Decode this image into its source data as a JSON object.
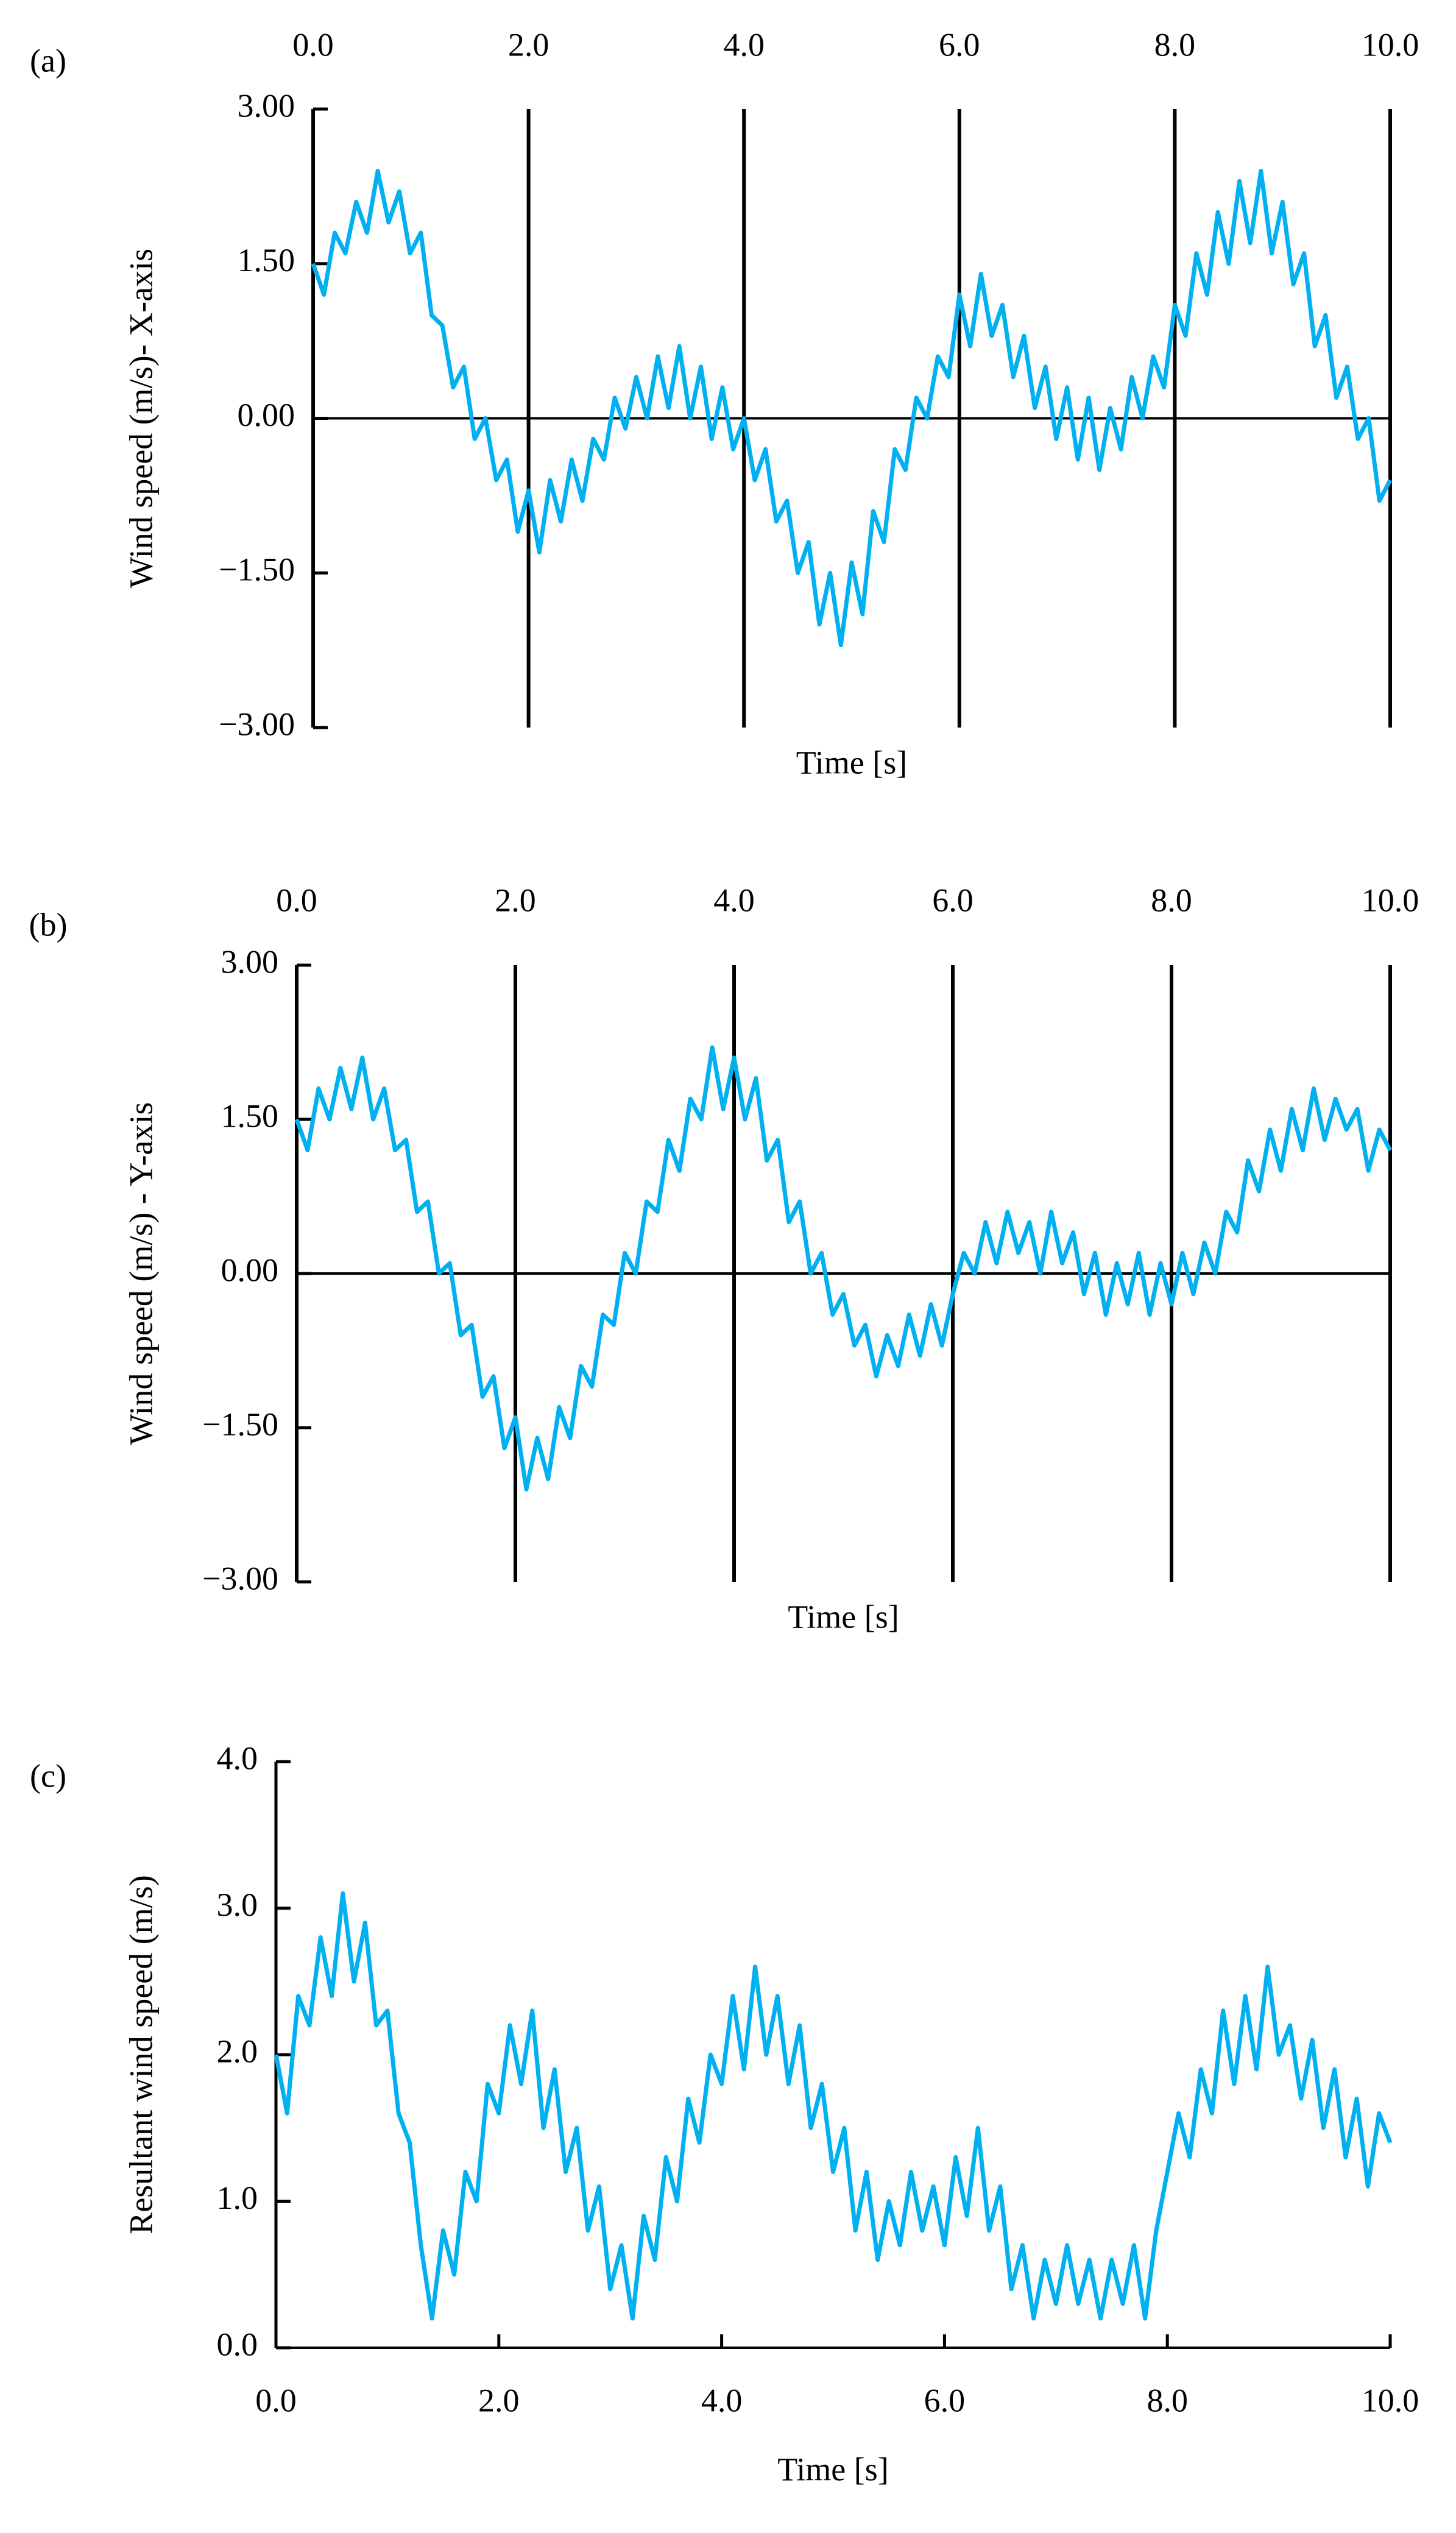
{
  "chart_data": [
    {
      "type": "line",
      "panel_label": "(a)",
      "xlabel": "Time [s]",
      "ylabel": "Wind speed (m/s)- X-axis",
      "xaxis_position": "top",
      "grid": true,
      "xlim": [
        0,
        10
      ],
      "xticks": [
        {
          "value": 0,
          "label": "0.0"
        },
        {
          "value": 2,
          "label": "2.0"
        },
        {
          "value": 4,
          "label": "4.0"
        },
        {
          "value": 6,
          "label": "6.0"
        },
        {
          "value": 8,
          "label": "8.0"
        },
        {
          "value": 10,
          "label": "10.0"
        }
      ],
      "ylim": [
        -3,
        3
      ],
      "yticks": [
        {
          "value": -3,
          "label": "−3.00"
        },
        {
          "value": -1.5,
          "label": "−1.50"
        },
        {
          "value": 0,
          "label": "0.00"
        },
        {
          "value": 1.5,
          "label": "1.50"
        },
        {
          "value": 3,
          "label": "3.00"
        }
      ],
      "x": [
        0,
        0.1,
        0.2,
        0.3,
        0.4,
        0.5,
        0.6,
        0.7,
        0.8,
        0.9,
        1,
        1.1,
        1.2,
        1.3,
        1.4,
        1.5,
        1.6,
        1.7,
        1.8,
        1.9,
        2,
        2.1,
        2.2,
        2.3,
        2.4,
        2.5,
        2.6,
        2.7,
        2.8,
        2.9,
        3,
        3.1,
        3.2,
        3.3,
        3.4,
        3.5,
        3.6,
        3.7,
        3.8,
        3.9,
        4,
        4.1,
        4.2,
        4.3,
        4.4,
        4.5,
        4.6,
        4.7,
        4.8,
        4.9,
        5,
        5.1,
        5.2,
        5.3,
        5.4,
        5.5,
        5.6,
        5.7,
        5.8,
        5.9,
        6,
        6.1,
        6.2,
        6.3,
        6.4,
        6.5,
        6.6,
        6.7,
        6.8,
        6.9,
        7,
        7.1,
        7.2,
        7.3,
        7.4,
        7.5,
        7.6,
        7.7,
        7.8,
        7.9,
        8,
        8.1,
        8.2,
        8.3,
        8.4,
        8.5,
        8.6,
        8.7,
        8.8,
        8.9,
        9,
        9.1,
        9.2,
        9.3,
        9.4,
        9.5,
        9.6,
        9.7,
        9.8,
        9.9,
        10
      ],
      "series": [
        {
          "color": "#00b0f0",
          "values": [
            1.5,
            1.2,
            1.8,
            1.6,
            2.1,
            1.8,
            2.4,
            1.9,
            2.2,
            1.6,
            1.8,
            1.0,
            0.9,
            0.3,
            0.5,
            -0.2,
            0.0,
            -0.6,
            -0.4,
            -1.1,
            -0.7,
            -1.3,
            -0.6,
            -1.0,
            -0.4,
            -0.8,
            -0.2,
            -0.4,
            0.2,
            -0.1,
            0.4,
            0.0,
            0.6,
            0.1,
            0.7,
            0.0,
            0.5,
            -0.2,
            0.3,
            -0.3,
            0.0,
            -0.6,
            -0.3,
            -1.0,
            -0.8,
            -1.5,
            -1.2,
            -2.0,
            -1.5,
            -2.2,
            -1.4,
            -1.9,
            -0.9,
            -1.2,
            -0.3,
            -0.5,
            0.2,
            0.0,
            0.6,
            0.4,
            1.2,
            0.7,
            1.4,
            0.8,
            1.1,
            0.4,
            0.8,
            0.1,
            0.5,
            -0.2,
            0.3,
            -0.4,
            0.2,
            -0.5,
            0.1,
            -0.3,
            0.4,
            0.0,
            0.6,
            0.3,
            1.1,
            0.8,
            1.6,
            1.2,
            2.0,
            1.5,
            2.3,
            1.7,
            2.4,
            1.6,
            2.1,
            1.3,
            1.6,
            0.7,
            1.0,
            0.2,
            0.5,
            -0.2,
            0.0,
            -0.8,
            -0.6
          ]
        }
      ]
    },
    {
      "type": "line",
      "panel_label": "(b)",
      "xlabel": "Time [s]",
      "ylabel": "Wind speed (m/s) - Y-axis",
      "xaxis_position": "top",
      "grid": true,
      "xlim": [
        0,
        10
      ],
      "xticks": [
        {
          "value": 0,
          "label": "0.0"
        },
        {
          "value": 2,
          "label": "2.0"
        },
        {
          "value": 4,
          "label": "4.0"
        },
        {
          "value": 6,
          "label": "6.0"
        },
        {
          "value": 8,
          "label": "8.0"
        },
        {
          "value": 10,
          "label": "10.0"
        }
      ],
      "ylim": [
        -3,
        3
      ],
      "yticks": [
        {
          "value": -3,
          "label": "−3.00"
        },
        {
          "value": -1.5,
          "label": "−1.50"
        },
        {
          "value": 0,
          "label": "0.00"
        },
        {
          "value": 1.5,
          "label": "1.50"
        },
        {
          "value": 3,
          "label": "3.00"
        }
      ],
      "x": [
        0,
        0.1,
        0.2,
        0.3,
        0.4,
        0.5,
        0.6,
        0.7,
        0.8,
        0.9,
        1,
        1.1,
        1.2,
        1.3,
        1.4,
        1.5,
        1.6,
        1.7,
        1.8,
        1.9,
        2,
        2.1,
        2.2,
        2.3,
        2.4,
        2.5,
        2.6,
        2.7,
        2.8,
        2.9,
        3,
        3.1,
        3.2,
        3.3,
        3.4,
        3.5,
        3.6,
        3.7,
        3.8,
        3.9,
        4,
        4.1,
        4.2,
        4.3,
        4.4,
        4.5,
        4.6,
        4.7,
        4.8,
        4.9,
        5,
        5.1,
        5.2,
        5.3,
        5.4,
        5.5,
        5.6,
        5.7,
        5.8,
        5.9,
        6,
        6.1,
        6.2,
        6.3,
        6.4,
        6.5,
        6.6,
        6.7,
        6.8,
        6.9,
        7,
        7.1,
        7.2,
        7.3,
        7.4,
        7.5,
        7.6,
        7.7,
        7.8,
        7.9,
        8,
        8.1,
        8.2,
        8.3,
        8.4,
        8.5,
        8.6,
        8.7,
        8.8,
        8.9,
        9,
        9.1,
        9.2,
        9.3,
        9.4,
        9.5,
        9.6,
        9.7,
        9.8,
        9.9,
        10
      ],
      "series": [
        {
          "color": "#00b0f0",
          "values": [
            1.5,
            1.2,
            1.8,
            1.5,
            2.0,
            1.6,
            2.1,
            1.5,
            1.8,
            1.2,
            1.3,
            0.6,
            0.7,
            0.0,
            0.1,
            -0.6,
            -0.5,
            -1.2,
            -1.0,
            -1.7,
            -1.4,
            -2.1,
            -1.6,
            -2.0,
            -1.3,
            -1.6,
            -0.9,
            -1.1,
            -0.4,
            -0.5,
            0.2,
            0.0,
            0.7,
            0.6,
            1.3,
            1.0,
            1.7,
            1.5,
            2.2,
            1.6,
            2.1,
            1.5,
            1.9,
            1.1,
            1.3,
            0.5,
            0.7,
            0.0,
            0.2,
            -0.4,
            -0.2,
            -0.7,
            -0.5,
            -1.0,
            -0.6,
            -0.9,
            -0.4,
            -0.8,
            -0.3,
            -0.7,
            -0.2,
            0.2,
            0.0,
            0.5,
            0.1,
            0.6,
            0.2,
            0.5,
            0.0,
            0.6,
            0.1,
            0.4,
            -0.2,
            0.2,
            -0.4,
            0.1,
            -0.3,
            0.2,
            -0.4,
            0.1,
            -0.3,
            0.2,
            -0.2,
            0.3,
            0.0,
            0.6,
            0.4,
            1.1,
            0.8,
            1.4,
            1.0,
            1.6,
            1.2,
            1.8,
            1.3,
            1.7,
            1.4,
            1.6,
            1.0,
            1.4,
            1.2
          ]
        }
      ]
    },
    {
      "type": "line",
      "panel_label": "(c)",
      "xlabel": "Time [s]",
      "ylabel": "Resultant wind speed (m/s)",
      "xaxis_position": "bottom",
      "grid": false,
      "xlim": [
        0,
        10
      ],
      "xticks": [
        {
          "value": 0,
          "label": "0.0"
        },
        {
          "value": 2,
          "label": "2.0"
        },
        {
          "value": 4,
          "label": "4.0"
        },
        {
          "value": 6,
          "label": "6.0"
        },
        {
          "value": 8,
          "label": "8.0"
        },
        {
          "value": 10,
          "label": "10.0"
        }
      ],
      "ylim": [
        0,
        4
      ],
      "yticks": [
        {
          "value": 0,
          "label": "0.0"
        },
        {
          "value": 1,
          "label": "1.0"
        },
        {
          "value": 2,
          "label": "2.0"
        },
        {
          "value": 3,
          "label": "3.0"
        },
        {
          "value": 4,
          "label": "4.0"
        }
      ],
      "x": [
        0,
        0.1,
        0.2,
        0.3,
        0.4,
        0.5,
        0.6,
        0.7,
        0.8,
        0.9,
        1,
        1.1,
        1.2,
        1.3,
        1.4,
        1.5,
        1.6,
        1.7,
        1.8,
        1.9,
        2,
        2.1,
        2.2,
        2.3,
        2.4,
        2.5,
        2.6,
        2.7,
        2.8,
        2.9,
        3,
        3.1,
        3.2,
        3.3,
        3.4,
        3.5,
        3.6,
        3.7,
        3.8,
        3.9,
        4,
        4.1,
        4.2,
        4.3,
        4.4,
        4.5,
        4.6,
        4.7,
        4.8,
        4.9,
        5,
        5.1,
        5.2,
        5.3,
        5.4,
        5.5,
        5.6,
        5.7,
        5.8,
        5.9,
        6,
        6.1,
        6.2,
        6.3,
        6.4,
        6.5,
        6.6,
        6.7,
        6.8,
        6.9,
        7,
        7.1,
        7.2,
        7.3,
        7.4,
        7.5,
        7.6,
        7.7,
        7.8,
        7.9,
        8,
        8.1,
        8.2,
        8.3,
        8.4,
        8.5,
        8.6,
        8.7,
        8.8,
        8.9,
        9,
        9.1,
        9.2,
        9.3,
        9.4,
        9.5,
        9.6,
        9.7,
        9.8,
        9.9,
        10
      ],
      "series": [
        {
          "color": "#00b0f0",
          "values": [
            2.0,
            1.6,
            2.4,
            2.2,
            2.8,
            2.4,
            3.1,
            2.5,
            2.9,
            2.2,
            2.3,
            1.6,
            1.4,
            0.7,
            0.2,
            0.8,
            0.5,
            1.2,
            1.0,
            1.8,
            1.6,
            2.2,
            1.8,
            2.3,
            1.5,
            1.9,
            1.2,
            1.5,
            0.8,
            1.1,
            0.4,
            0.7,
            0.2,
            0.9,
            0.6,
            1.3,
            1.0,
            1.7,
            1.4,
            2.0,
            1.8,
            2.4,
            1.9,
            2.6,
            2.0,
            2.4,
            1.8,
            2.2,
            1.5,
            1.8,
            1.2,
            1.5,
            0.8,
            1.2,
            0.6,
            1.0,
            0.7,
            1.2,
            0.8,
            1.1,
            0.7,
            1.3,
            0.9,
            1.5,
            0.8,
            1.1,
            0.4,
            0.7,
            0.2,
            0.6,
            0.3,
            0.7,
            0.3,
            0.6,
            0.2,
            0.6,
            0.3,
            0.7,
            0.2,
            0.8,
            1.2,
            1.6,
            1.3,
            1.9,
            1.6,
            2.3,
            1.8,
            2.4,
            1.9,
            2.6,
            2.0,
            2.2,
            1.7,
            2.1,
            1.5,
            1.9,
            1.3,
            1.7,
            1.1,
            1.6,
            1.4
          ]
        }
      ]
    }
  ]
}
